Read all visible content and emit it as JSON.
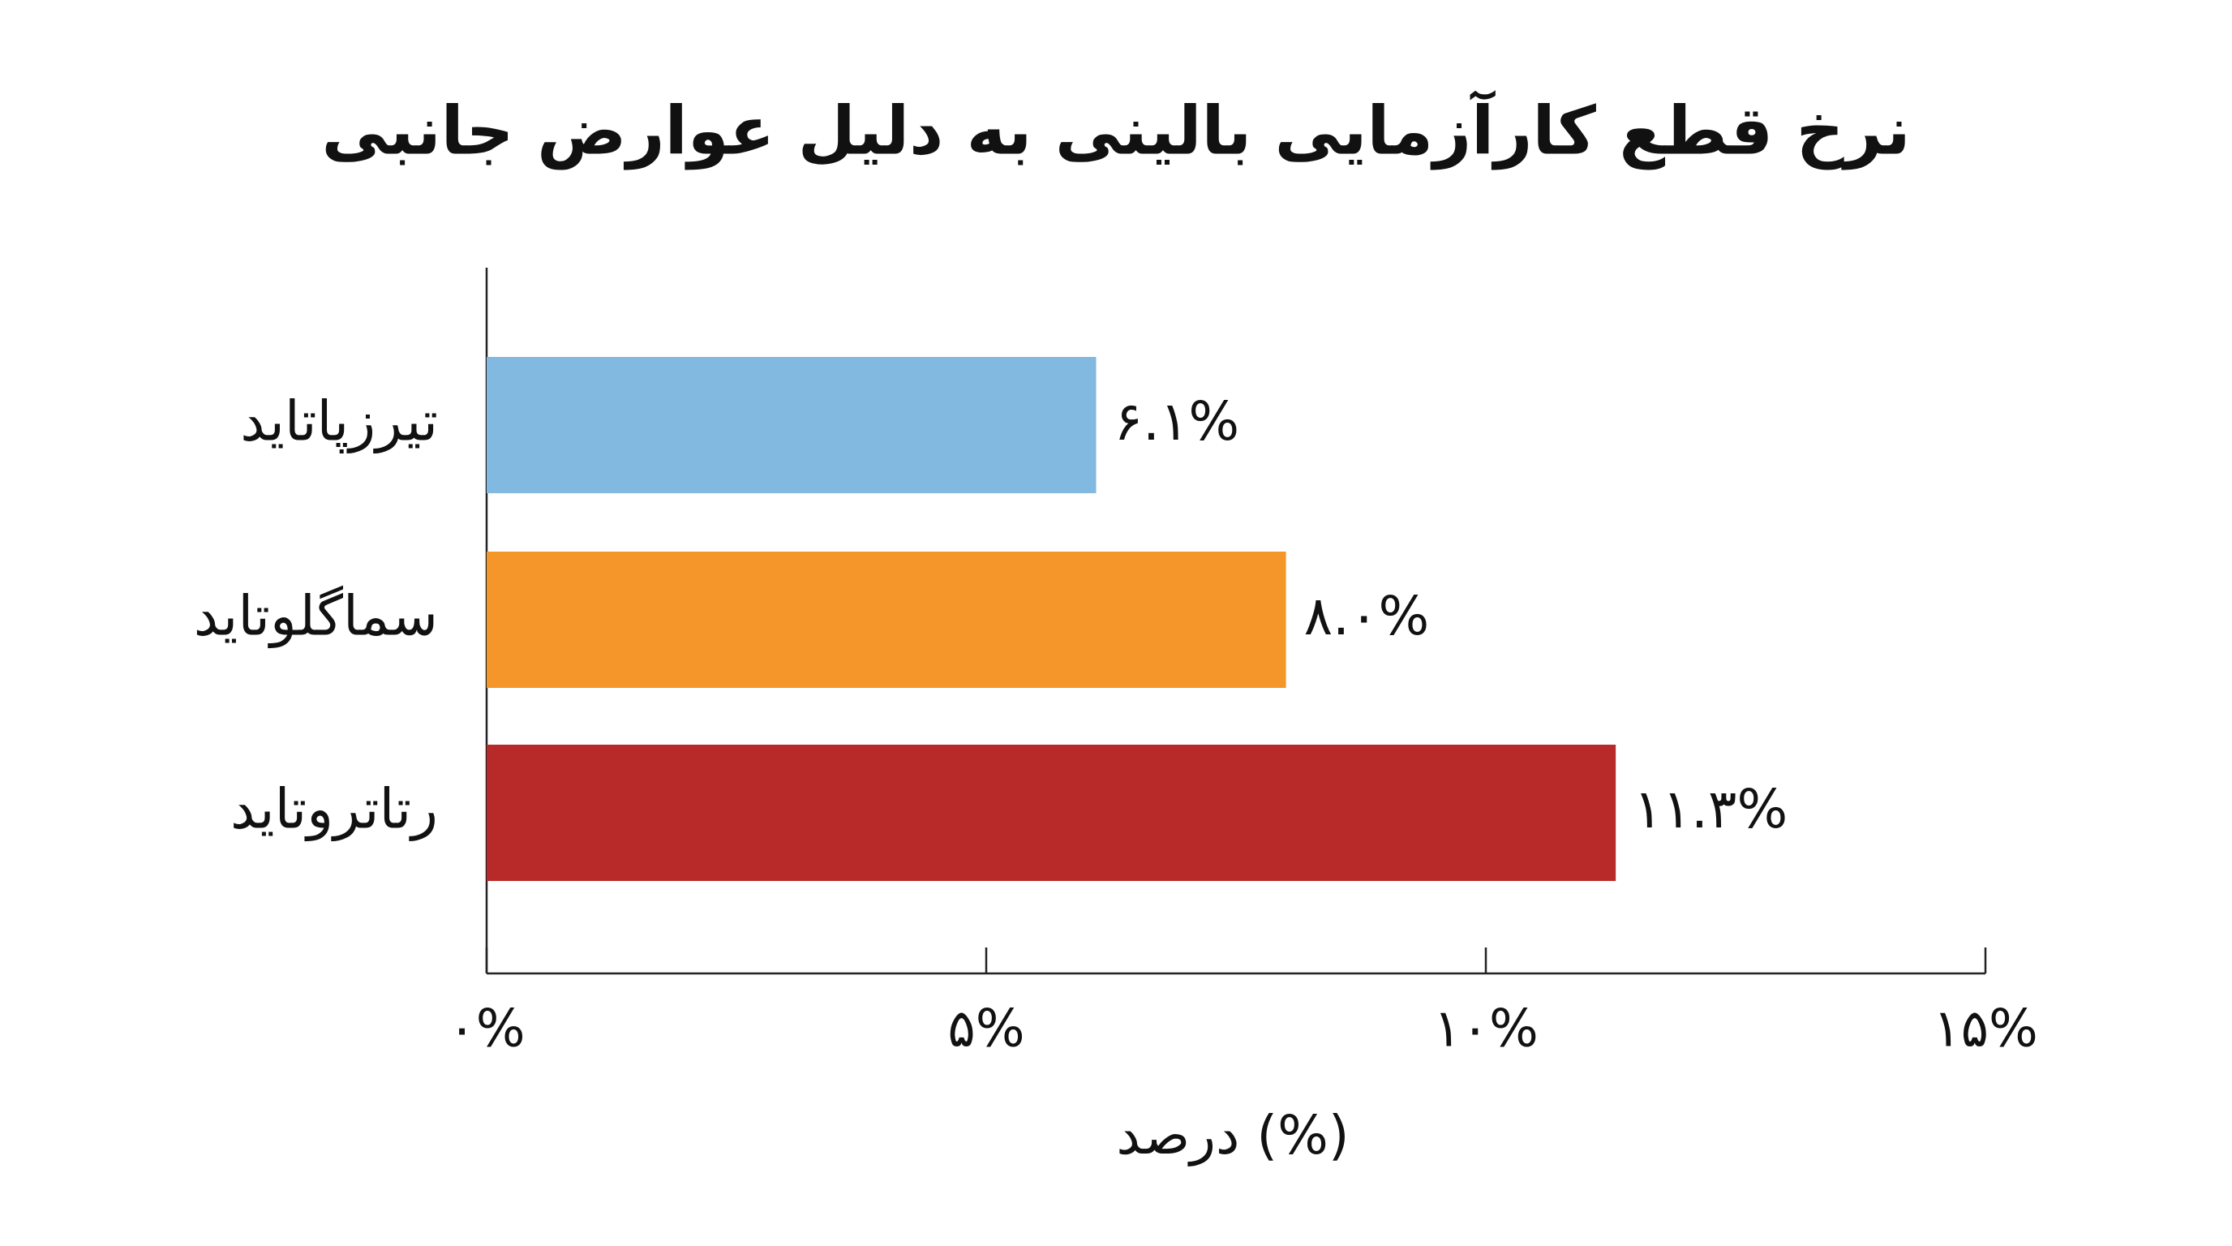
{
  "chart_data": {
    "type": "bar",
    "orientation": "horizontal",
    "title": "نرخ قطع کارآزمایی بالینی به دلیل عوارض جانبی",
    "categories": [
      "تیرزپاتاید",
      "سماگلوتاید",
      "رتاتروتاید"
    ],
    "values": [
      6.1,
      8.0,
      11.3
    ],
    "value_labels": [
      "۶.۱%",
      "۸.۰%",
      "۱۱.۳%"
    ],
    "colors": [
      "#82b9e0",
      "#f4962a",
      "#b8292a"
    ],
    "xlim": [
      0,
      15
    ],
    "xticks": [
      {
        "value": 0,
        "label": "۰%"
      },
      {
        "value": 5,
        "label": "۵%"
      },
      {
        "value": 10,
        "label": "۱۰%"
      },
      {
        "value": 15,
        "label": "۱۵%"
      }
    ],
    "xlabel": "درصد (%)"
  }
}
